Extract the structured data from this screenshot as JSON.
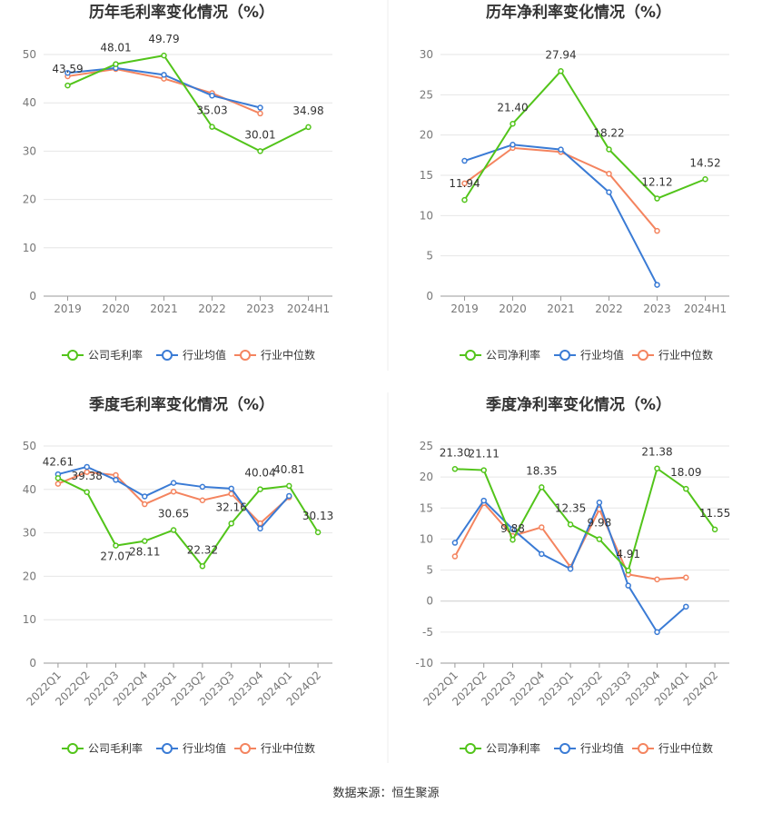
{
  "colors": {
    "company": "#52c41a",
    "industry_avg": "#3a7bd5",
    "industry_median": "#f4845f",
    "grid": "#e6e6e6",
    "axis": "#999999"
  },
  "legend_labels": {
    "company_gross": "公司毛利率",
    "company_net": "公司净利率",
    "industry_avg": "行业均值",
    "industry_median": "行业中位数"
  },
  "source": "数据来源：恒生聚源",
  "chart_data": [
    {
      "type": "line",
      "title": "历年毛利率变化情况（%）",
      "categories": [
        "2019",
        "2020",
        "2021",
        "2022",
        "2023",
        "2024H1"
      ],
      "ylim": [
        0,
        50
      ],
      "yticks": [
        0,
        10,
        20,
        30,
        40,
        50
      ],
      "grid": true,
      "legend": "bottom",
      "series": [
        {
          "name": "公司毛利率",
          "values": [
            43.59,
            48.01,
            49.79,
            35.03,
            30.01,
            34.98
          ],
          "labels": [
            "43.59",
            "48.01",
            "49.79",
            "35.03",
            "30.01",
            "34.98"
          ]
        },
        {
          "name": "行业均值",
          "values": [
            46.2,
            47.2,
            45.8,
            41.5,
            39.0,
            null
          ]
        },
        {
          "name": "行业中位数",
          "values": [
            45.5,
            47.0,
            45.0,
            42.0,
            37.8,
            null
          ]
        }
      ]
    },
    {
      "type": "line",
      "title": "历年净利率变化情况（%）",
      "categories": [
        "2019",
        "2020",
        "2021",
        "2022",
        "2023",
        "2024H1"
      ],
      "ylim": [
        0,
        30
      ],
      "yticks": [
        0,
        5,
        10,
        15,
        20,
        25,
        30
      ],
      "grid": true,
      "legend": "bottom",
      "series": [
        {
          "name": "公司净利率",
          "values": [
            11.94,
            21.4,
            27.94,
            18.22,
            12.12,
            14.52
          ],
          "labels": [
            "11.94",
            "21.40",
            "27.94",
            "18.22",
            "12.12",
            "14.52"
          ]
        },
        {
          "name": "行业均值",
          "values": [
            16.8,
            18.8,
            18.2,
            12.9,
            1.4,
            null
          ]
        },
        {
          "name": "行业中位数",
          "values": [
            14.0,
            18.4,
            17.9,
            15.2,
            8.1,
            null
          ]
        }
      ]
    },
    {
      "type": "line",
      "title": "季度毛利率变化情况（%）",
      "categories": [
        "2022Q1",
        "2022Q2",
        "2022Q3",
        "2022Q4",
        "2023Q1",
        "2023Q2",
        "2023Q3",
        "2023Q4",
        "2024Q1",
        "2024Q2"
      ],
      "ylim": [
        0,
        50
      ],
      "yticks": [
        0,
        10,
        20,
        30,
        40,
        50
      ],
      "grid": true,
      "legend": "bottom",
      "series": [
        {
          "name": "公司毛利率",
          "values": [
            42.61,
            39.38,
            27.07,
            28.11,
            30.65,
            22.32,
            32.16,
            40.04,
            40.81,
            30.13
          ],
          "labels": [
            "42.61",
            "39.38",
            "27.07",
            "28.11",
            "30.65",
            "22.32",
            "32.16",
            "40.04",
            "40.81",
            "30.13"
          ]
        },
        {
          "name": "行业均值",
          "values": [
            43.5,
            45.2,
            42.2,
            38.4,
            41.5,
            40.6,
            40.2,
            31.0,
            38.5,
            null
          ]
        },
        {
          "name": "行业中位数",
          "values": [
            41.3,
            44.0,
            43.3,
            36.6,
            39.5,
            37.5,
            39.0,
            32.2,
            38.2,
            null
          ]
        }
      ]
    },
    {
      "type": "line",
      "title": "季度净利率变化情况（%）",
      "categories": [
        "2022Q1",
        "2022Q2",
        "2022Q3",
        "2022Q4",
        "2023Q1",
        "2023Q2",
        "2023Q3",
        "2023Q4",
        "2024Q1",
        "2024Q2"
      ],
      "ylim": [
        -10,
        25
      ],
      "yticks": [
        -10,
        -5,
        0,
        5,
        10,
        15,
        20,
        25
      ],
      "grid": true,
      "legend": "bottom",
      "series": [
        {
          "name": "公司净利率",
          "values": [
            21.3,
            21.11,
            9.88,
            18.35,
            12.35,
            9.98,
            4.91,
            21.38,
            18.09,
            11.55
          ],
          "labels": [
            "21.30",
            "21.11",
            "9.88",
            "18.35",
            "12.35",
            "9.98",
            "4.91",
            "21.38",
            "18.09",
            "11.55"
          ]
        },
        {
          "name": "行业均值",
          "values": [
            9.4,
            16.2,
            11.6,
            7.6,
            5.2,
            15.9,
            2.5,
            -5.0,
            -0.9,
            null
          ]
        },
        {
          "name": "行业中位数",
          "values": [
            7.2,
            15.8,
            10.5,
            11.9,
            5.5,
            14.8,
            4.3,
            3.5,
            3.8,
            null
          ]
        }
      ]
    }
  ]
}
